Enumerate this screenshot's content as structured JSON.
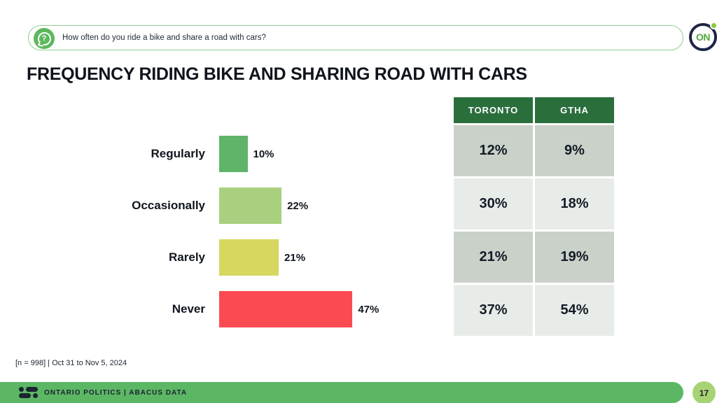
{
  "banner": {
    "question": "How often do you ride a bike and share a road with cars?",
    "icon": "question-mark-speech-bubble"
  },
  "brand": {
    "logo_text": "ON",
    "accent_green": "#5cb765",
    "dark_navy": "#1e2546",
    "logo_dot_green": "#8cc63f"
  },
  "title": "FREQUENCY RIDING BIKE AND SHARING ROAD WITH CARS",
  "chart_data": {
    "type": "bar",
    "orientation": "horizontal",
    "title": "FREQUENCY RIDING BIKE AND SHARING ROAD WITH CARS",
    "categories": [
      "Regularly",
      "Occasionally",
      "Rarely",
      "Never"
    ],
    "values": [
      10,
      22,
      21,
      47
    ],
    "value_labels": [
      "10%",
      "22%",
      "21%",
      "47%"
    ],
    "bar_colors": [
      "#5fb469",
      "#a8d07e",
      "#d6d75f",
      "#fb4a52"
    ],
    "xlim": [
      0,
      100
    ],
    "grid": false,
    "comparison_table": {
      "columns": [
        "TORONTO",
        "GTHA"
      ],
      "rows": [
        [
          "12%",
          "9%"
        ],
        [
          "30%",
          "18%"
        ],
        [
          "21%",
          "19%"
        ],
        [
          "37%",
          "54%"
        ]
      ],
      "header_bg": "#2a6e3c",
      "row_bg_alternating": [
        "#c9d1c9",
        "#e8ece8"
      ]
    }
  },
  "footnote": "[n = 998] | Oct 31 to Nov 5, 2024",
  "footer": {
    "label": "ONTARIO POLITICS  |  ABACUS DATA",
    "page_number": "17"
  }
}
